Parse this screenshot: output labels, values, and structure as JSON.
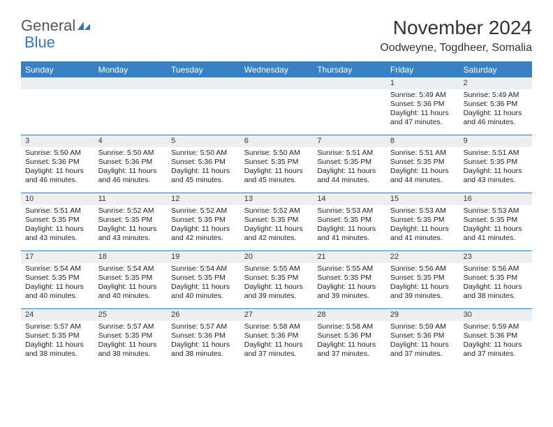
{
  "brand": {
    "part1": "General",
    "part2": "Blue"
  },
  "title": "November 2024",
  "location": "Oodweyne, Togdheer, Somalia",
  "colors": {
    "accent": "#3a81c4",
    "rule": "#2f79b9",
    "shade": "#eceff2",
    "background": "#ffffff",
    "text": "#222222"
  },
  "day_headers": [
    "Sunday",
    "Monday",
    "Tuesday",
    "Wednesday",
    "Thursday",
    "Friday",
    "Saturday"
  ],
  "weeks": [
    [
      {
        "day": null
      },
      {
        "day": null
      },
      {
        "day": null
      },
      {
        "day": null
      },
      {
        "day": null
      },
      {
        "day": "1",
        "sunrise": "Sunrise: 5:49 AM",
        "sunset": "Sunset: 5:36 PM",
        "daylight": "Daylight: 11 hours and 47 minutes."
      },
      {
        "day": "2",
        "sunrise": "Sunrise: 5:49 AM",
        "sunset": "Sunset: 5:36 PM",
        "daylight": "Daylight: 11 hours and 46 minutes."
      }
    ],
    [
      {
        "day": "3",
        "sunrise": "Sunrise: 5:50 AM",
        "sunset": "Sunset: 5:36 PM",
        "daylight": "Daylight: 11 hours and 46 minutes."
      },
      {
        "day": "4",
        "sunrise": "Sunrise: 5:50 AM",
        "sunset": "Sunset: 5:36 PM",
        "daylight": "Daylight: 11 hours and 46 minutes."
      },
      {
        "day": "5",
        "sunrise": "Sunrise: 5:50 AM",
        "sunset": "Sunset: 5:36 PM",
        "daylight": "Daylight: 11 hours and 45 minutes."
      },
      {
        "day": "6",
        "sunrise": "Sunrise: 5:50 AM",
        "sunset": "Sunset: 5:35 PM",
        "daylight": "Daylight: 11 hours and 45 minutes."
      },
      {
        "day": "7",
        "sunrise": "Sunrise: 5:51 AM",
        "sunset": "Sunset: 5:35 PM",
        "daylight": "Daylight: 11 hours and 44 minutes."
      },
      {
        "day": "8",
        "sunrise": "Sunrise: 5:51 AM",
        "sunset": "Sunset: 5:35 PM",
        "daylight": "Daylight: 11 hours and 44 minutes."
      },
      {
        "day": "9",
        "sunrise": "Sunrise: 5:51 AM",
        "sunset": "Sunset: 5:35 PM",
        "daylight": "Daylight: 11 hours and 43 minutes."
      }
    ],
    [
      {
        "day": "10",
        "sunrise": "Sunrise: 5:51 AM",
        "sunset": "Sunset: 5:35 PM",
        "daylight": "Daylight: 11 hours and 43 minutes."
      },
      {
        "day": "11",
        "sunrise": "Sunrise: 5:52 AM",
        "sunset": "Sunset: 5:35 PM",
        "daylight": "Daylight: 11 hours and 43 minutes."
      },
      {
        "day": "12",
        "sunrise": "Sunrise: 5:52 AM",
        "sunset": "Sunset: 5:35 PM",
        "daylight": "Daylight: 11 hours and 42 minutes."
      },
      {
        "day": "13",
        "sunrise": "Sunrise: 5:52 AM",
        "sunset": "Sunset: 5:35 PM",
        "daylight": "Daylight: 11 hours and 42 minutes."
      },
      {
        "day": "14",
        "sunrise": "Sunrise: 5:53 AM",
        "sunset": "Sunset: 5:35 PM",
        "daylight": "Daylight: 11 hours and 41 minutes."
      },
      {
        "day": "15",
        "sunrise": "Sunrise: 5:53 AM",
        "sunset": "Sunset: 5:35 PM",
        "daylight": "Daylight: 11 hours and 41 minutes."
      },
      {
        "day": "16",
        "sunrise": "Sunrise: 5:53 AM",
        "sunset": "Sunset: 5:35 PM",
        "daylight": "Daylight: 11 hours and 41 minutes."
      }
    ],
    [
      {
        "day": "17",
        "sunrise": "Sunrise: 5:54 AM",
        "sunset": "Sunset: 5:35 PM",
        "daylight": "Daylight: 11 hours and 40 minutes."
      },
      {
        "day": "18",
        "sunrise": "Sunrise: 5:54 AM",
        "sunset": "Sunset: 5:35 PM",
        "daylight": "Daylight: 11 hours and 40 minutes."
      },
      {
        "day": "19",
        "sunrise": "Sunrise: 5:54 AM",
        "sunset": "Sunset: 5:35 PM",
        "daylight": "Daylight: 11 hours and 40 minutes."
      },
      {
        "day": "20",
        "sunrise": "Sunrise: 5:55 AM",
        "sunset": "Sunset: 5:35 PM",
        "daylight": "Daylight: 11 hours and 39 minutes."
      },
      {
        "day": "21",
        "sunrise": "Sunrise: 5:55 AM",
        "sunset": "Sunset: 5:35 PM",
        "daylight": "Daylight: 11 hours and 39 minutes."
      },
      {
        "day": "22",
        "sunrise": "Sunrise: 5:56 AM",
        "sunset": "Sunset: 5:35 PM",
        "daylight": "Daylight: 11 hours and 39 minutes."
      },
      {
        "day": "23",
        "sunrise": "Sunrise: 5:56 AM",
        "sunset": "Sunset: 5:35 PM",
        "daylight": "Daylight: 11 hours and 38 minutes."
      }
    ],
    [
      {
        "day": "24",
        "sunrise": "Sunrise: 5:57 AM",
        "sunset": "Sunset: 5:35 PM",
        "daylight": "Daylight: 11 hours and 38 minutes."
      },
      {
        "day": "25",
        "sunrise": "Sunrise: 5:57 AM",
        "sunset": "Sunset: 5:35 PM",
        "daylight": "Daylight: 11 hours and 38 minutes."
      },
      {
        "day": "26",
        "sunrise": "Sunrise: 5:57 AM",
        "sunset": "Sunset: 5:36 PM",
        "daylight": "Daylight: 11 hours and 38 minutes."
      },
      {
        "day": "27",
        "sunrise": "Sunrise: 5:58 AM",
        "sunset": "Sunset: 5:36 PM",
        "daylight": "Daylight: 11 hours and 37 minutes."
      },
      {
        "day": "28",
        "sunrise": "Sunrise: 5:58 AM",
        "sunset": "Sunset: 5:36 PM",
        "daylight": "Daylight: 11 hours and 37 minutes."
      },
      {
        "day": "29",
        "sunrise": "Sunrise: 5:59 AM",
        "sunset": "Sunset: 5:36 PM",
        "daylight": "Daylight: 11 hours and 37 minutes."
      },
      {
        "day": "30",
        "sunrise": "Sunrise: 5:59 AM",
        "sunset": "Sunset: 5:36 PM",
        "daylight": "Daylight: 11 hours and 37 minutes."
      }
    ]
  ]
}
